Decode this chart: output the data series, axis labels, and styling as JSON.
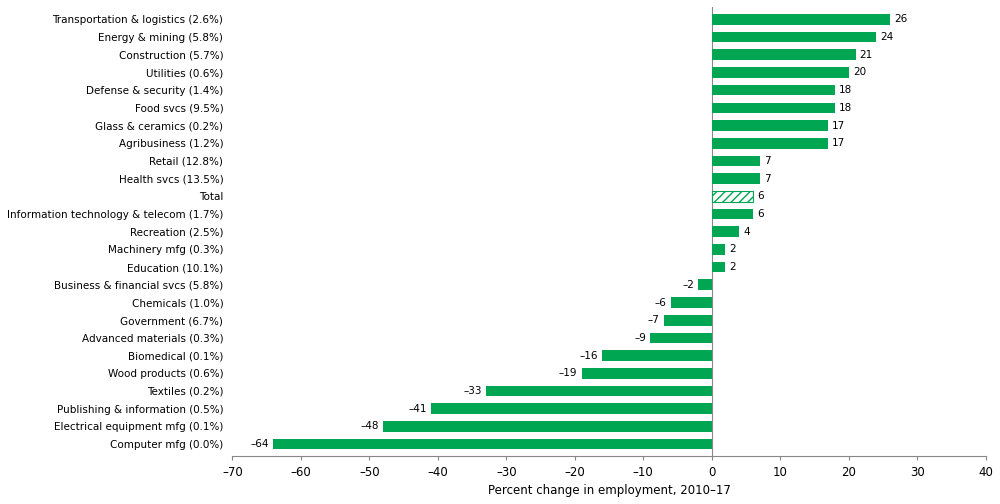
{
  "categories": [
    "Transportation & logistics (2.6%)",
    "Energy & mining (5.8%)",
    "Construction (5.7%)",
    "Utilities (0.6%)",
    "Defense & security (1.4%)",
    "Food svcs (9.5%)",
    "Glass & ceramics (0.2%)",
    "Agribusiness (1.2%)",
    "Retail (12.8%)",
    "Health svcs (13.5%)",
    "Total",
    "Information technology & telecom (1.7%)",
    "Recreation (2.5%)",
    "Machinery mfg (0.3%)",
    "Education (10.1%)",
    "Business & financial svcs (5.8%)",
    "Chemicals (1.0%)",
    "Government (6.7%)",
    "Advanced materials (0.3%)",
    "Biomedical (0.1%)",
    "Wood products (0.6%)",
    "Textiles (0.2%)",
    "Publishing & information (0.5%)",
    "Electrical equipment mfg (0.1%)",
    "Computer mfg (0.0%)"
  ],
  "values": [
    26,
    24,
    21,
    20,
    18,
    18,
    17,
    17,
    7,
    7,
    6,
    6,
    4,
    2,
    2,
    -2,
    -6,
    -7,
    -9,
    -16,
    -19,
    -33,
    -41,
    -48,
    -64
  ],
  "bar_color": "#00a651",
  "hatch_bar_index": 10,
  "xlabel": "Percent change in employment, 2010–17",
  "xlim": [
    -70,
    40
  ],
  "xticks": [
    -70,
    -60,
    -50,
    -40,
    -30,
    -20,
    -10,
    0,
    10,
    20,
    30,
    40
  ],
  "label_fontsize": 7.5,
  "tick_fontsize": 8.5,
  "xlabel_fontsize": 8.5,
  "bar_height": 0.6
}
